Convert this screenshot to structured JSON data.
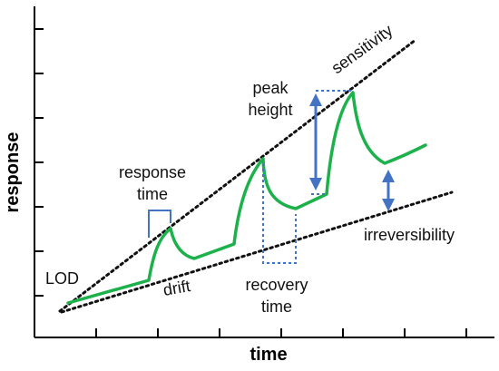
{
  "axes": {
    "x_label": "time",
    "y_label": "response"
  },
  "labels": {
    "sensitivity": "sensitivity",
    "peak_line1": "peak",
    "peak_line2": "height",
    "response_line1": "response",
    "response_line2": "time",
    "irreversibility": "irreversibility",
    "lod": "LOD",
    "drift": "drift",
    "recovery_line1": "recovery",
    "recovery_line2": "time"
  },
  "colors": {
    "signal": "#1db14b",
    "annotation": "#4472c4",
    "guide": "#111111",
    "axis": "#000000"
  }
}
